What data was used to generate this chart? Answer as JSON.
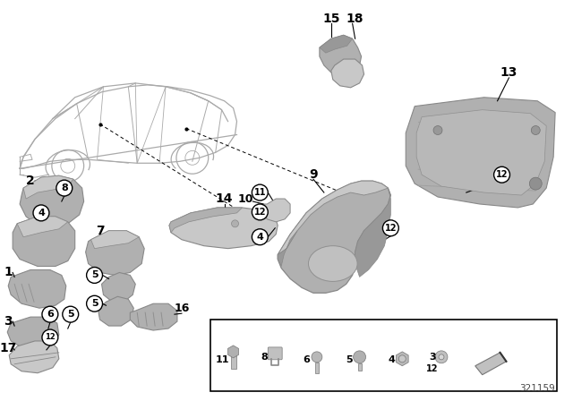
{
  "background_color": "#ffffff",
  "figure_width": 6.4,
  "figure_height": 4.48,
  "dpi": 100,
  "diagram_number": "321159",
  "part_color_light": "#c8c8c8",
  "part_color_mid": "#b0b0b0",
  "part_color_dark": "#989898",
  "part_edge": "#888888",
  "line_color": "#000000",
  "text_color": "#000000"
}
